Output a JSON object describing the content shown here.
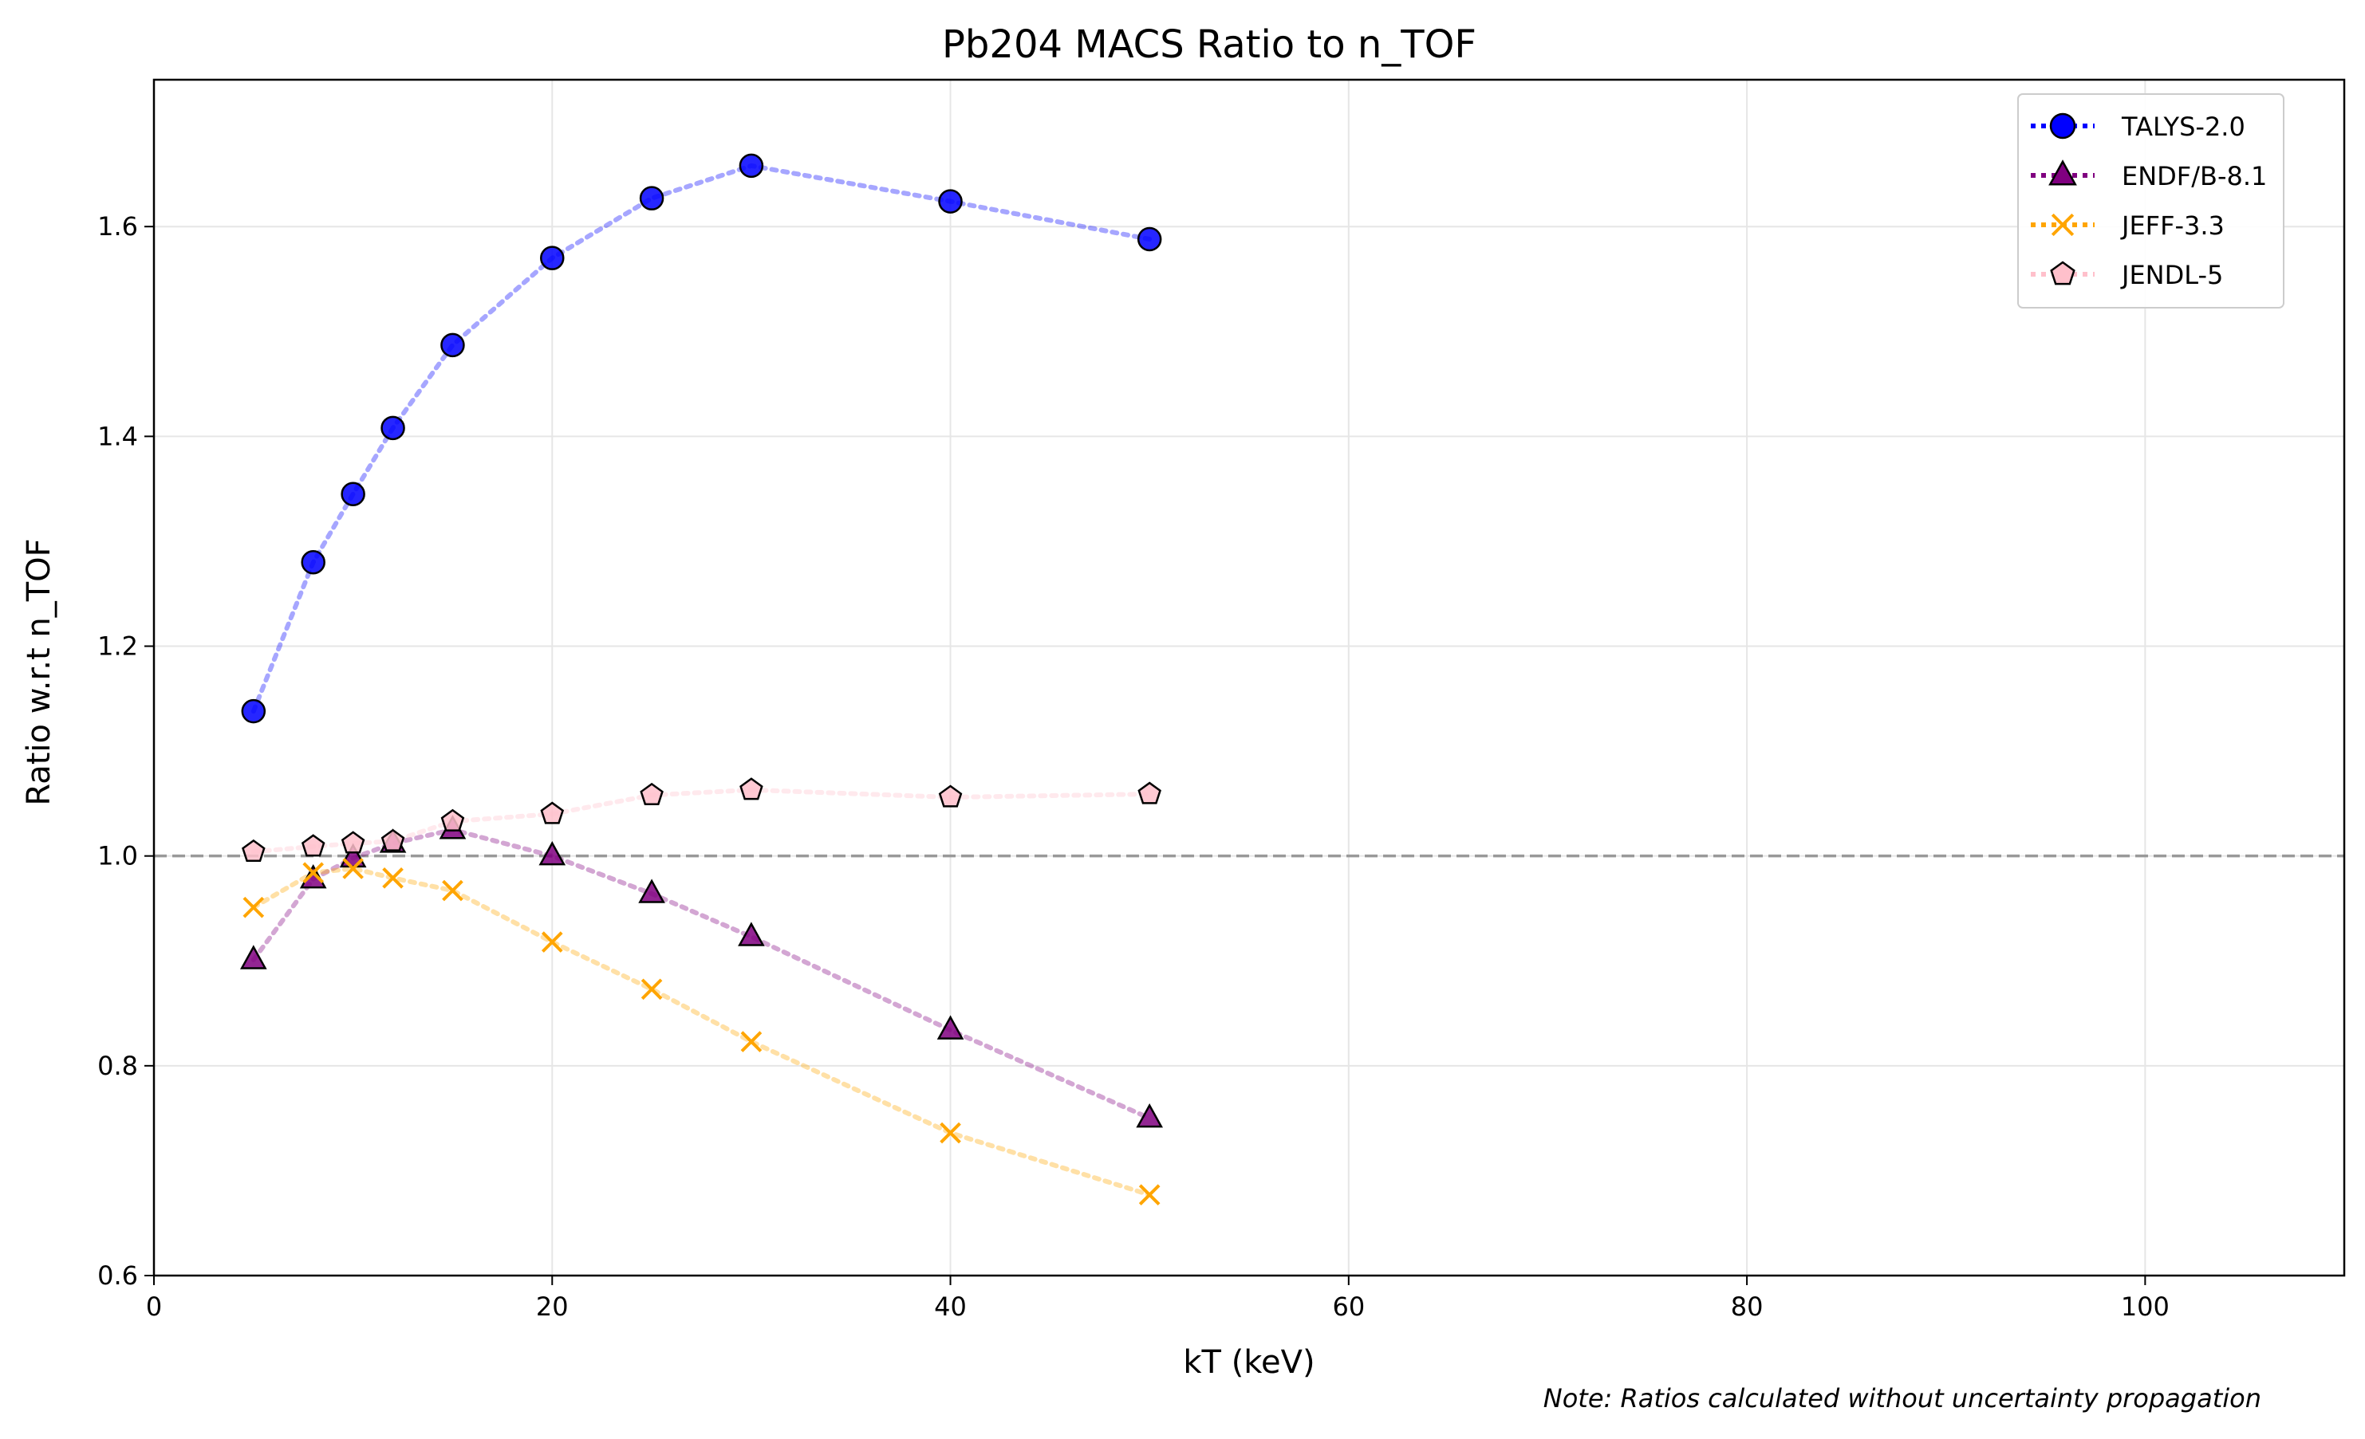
{
  "chart_data": {
    "type": "line",
    "title": "Pb204 MACS Ratio to n_TOF",
    "xlabel": "kT (keV)",
    "ylabel": "Ratio w.r.t n_TOF",
    "xlim": [
      0,
      110
    ],
    "ylim": [
      0.6,
      1.74
    ],
    "xticks": [
      0,
      20,
      40,
      60,
      80,
      100
    ],
    "yticks": [
      0.6,
      0.8,
      1.0,
      1.2,
      1.4,
      1.6
    ],
    "xtick_labels": [
      "0",
      "20",
      "40",
      "60",
      "80",
      "100"
    ],
    "ytick_labels": [
      "0.6",
      "0.8",
      "1.0",
      "1.2",
      "1.4",
      "1.6"
    ],
    "grid": true,
    "legend_position": "top-right",
    "reference_line": {
      "y": 1.0,
      "style": "dashed",
      "color": "#999999"
    },
    "x": [
      5,
      8,
      10,
      12,
      15,
      20,
      25,
      30,
      40,
      50
    ],
    "series": [
      {
        "name": "TALYS-2.0",
        "marker": "circle",
        "color": "#0000ff",
        "values": [
          1.138,
          1.28,
          1.345,
          1.408,
          1.487,
          1.57,
          1.627,
          1.658,
          1.624,
          1.588
        ]
      },
      {
        "name": "ENDF/B-8.1",
        "marker": "triangle",
        "color": "#800080",
        "values": [
          0.901,
          0.978,
          0.998,
          1.012,
          1.025,
          1.0,
          0.964,
          0.923,
          0.834,
          0.75
        ]
      },
      {
        "name": "JEFF-3.3",
        "marker": "x",
        "color": "#ffa500",
        "values": [
          0.951,
          0.984,
          0.988,
          0.979,
          0.967,
          0.918,
          0.873,
          0.823,
          0.736,
          0.677
        ]
      },
      {
        "name": "JENDL-5",
        "marker": "pentagon",
        "color": "#ffc0cb",
        "values": [
          1.004,
          1.009,
          1.012,
          1.014,
          1.033,
          1.04,
          1.058,
          1.063,
          1.056,
          1.059
        ]
      }
    ]
  },
  "note": "Note: Ratios calculated without uncertainty propagation"
}
